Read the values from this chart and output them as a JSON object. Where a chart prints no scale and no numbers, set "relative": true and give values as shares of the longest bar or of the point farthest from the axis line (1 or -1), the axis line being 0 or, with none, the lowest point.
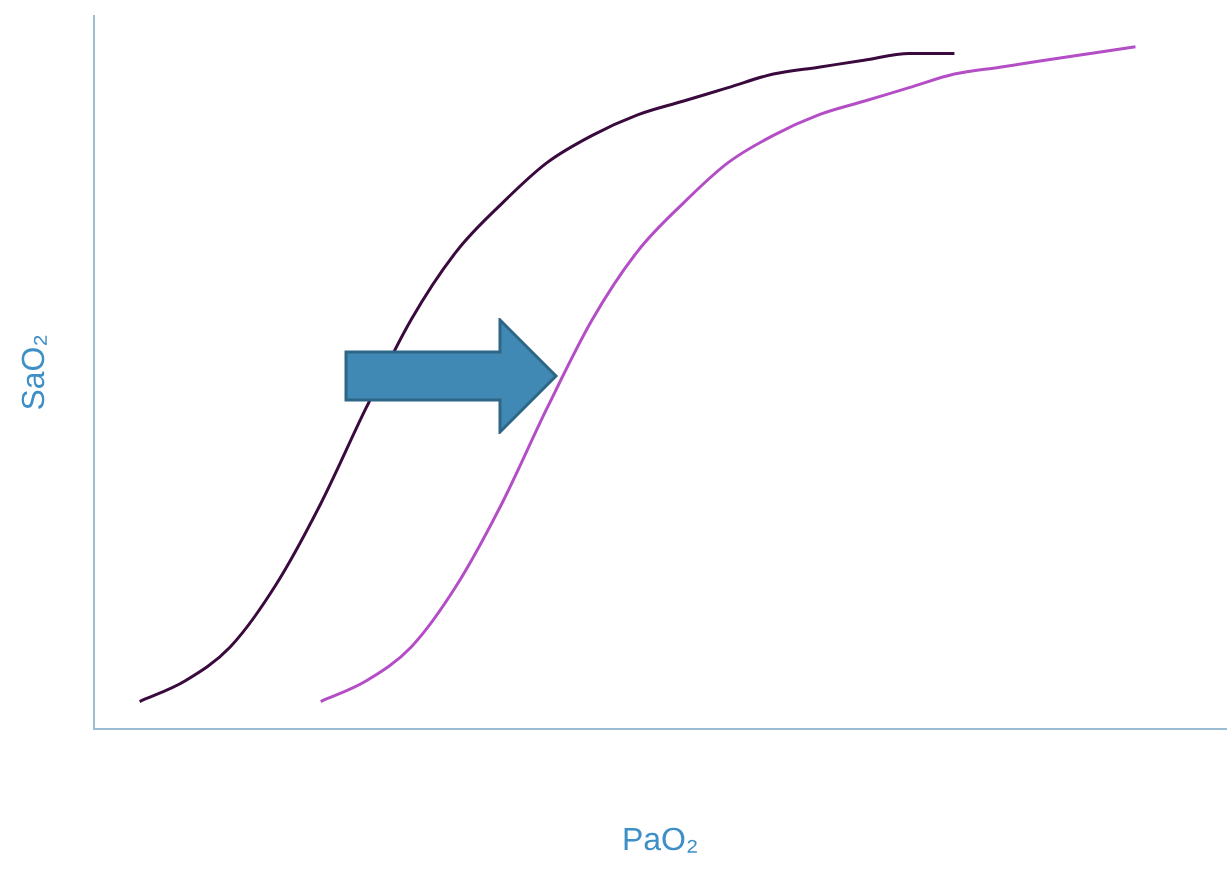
{
  "chart_data": {
    "type": "line",
    "relative": true,
    "xlabel": "PaO₂",
    "ylabel": "SaO₂",
    "legend": false,
    "grid": false,
    "marker": "none",
    "line_style": "solid",
    "categories": [
      null,
      null,
      null,
      null,
      null,
      null,
      null,
      null,
      null,
      null,
      null,
      null,
      null,
      null,
      null,
      null,
      null,
      null,
      null,
      null,
      null,
      null,
      null,
      null,
      null,
      null
    ],
    "series": [
      {
        "color": "#3a0a3e",
        "values": [
          null,
          0.04,
          0.07,
          0.12,
          0.21,
          0.33,
          0.47,
          0.6,
          0.7,
          0.77,
          0.83,
          0.87,
          0.9,
          0.92,
          0.94,
          0.96,
          0.97,
          0.98,
          0.99,
          0.99,
          null,
          null,
          null,
          null,
          null,
          null
        ]
      },
      {
        "color": "#b44ec6",
        "values": [
          null,
          null,
          null,
          null,
          null,
          0.04,
          0.07,
          0.12,
          0.21,
          0.33,
          0.47,
          0.6,
          0.7,
          0.77,
          0.83,
          0.87,
          0.9,
          0.92,
          0.94,
          0.96,
          0.97,
          0.98,
          0.99,
          1,
          null,
          null
        ]
      }
    ]
  }
}
